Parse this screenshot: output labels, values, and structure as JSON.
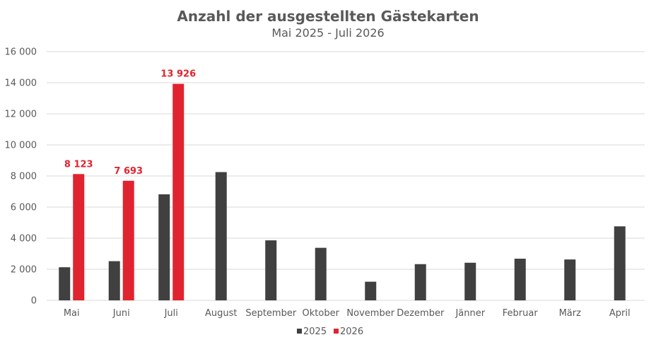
{
  "chart_data": {
    "type": "bar",
    "title": "Anzahl der ausgestellten Gästekarten",
    "subtitle": "Mai 2025 - Juli 2026",
    "categories": [
      "Mai",
      "Juni",
      "Juli",
      "August",
      "September",
      "Oktober",
      "November",
      "Dezember",
      "Jänner",
      "Februar",
      "März",
      "April"
    ],
    "series": [
      {
        "name": "2025",
        "color": "#404040",
        "values": [
          2130,
          2520,
          6820,
          8250,
          3860,
          3380,
          1200,
          2330,
          2420,
          2680,
          2630,
          4760
        ]
      },
      {
        "name": "2026",
        "color": "#e0242f",
        "values": [
          8123,
          7693,
          13926,
          null,
          null,
          null,
          null,
          null,
          null,
          null,
          null,
          null
        ],
        "data_labels": [
          "8 123",
          "7 693",
          "13 926",
          null,
          null,
          null,
          null,
          null,
          null,
          null,
          null,
          null
        ]
      }
    ],
    "ylim": [
      0,
      16000
    ],
    "yticks": [
      0,
      2000,
      4000,
      6000,
      8000,
      10000,
      12000,
      14000,
      16000
    ],
    "ytick_labels": [
      "0",
      "2 000",
      "4 000",
      "6 000",
      "8 000",
      "10 000",
      "12 000",
      "14 000",
      "16 000"
    ],
    "data_label_color": "#e0242f",
    "grid": true,
    "legend_position": "bottom"
  }
}
